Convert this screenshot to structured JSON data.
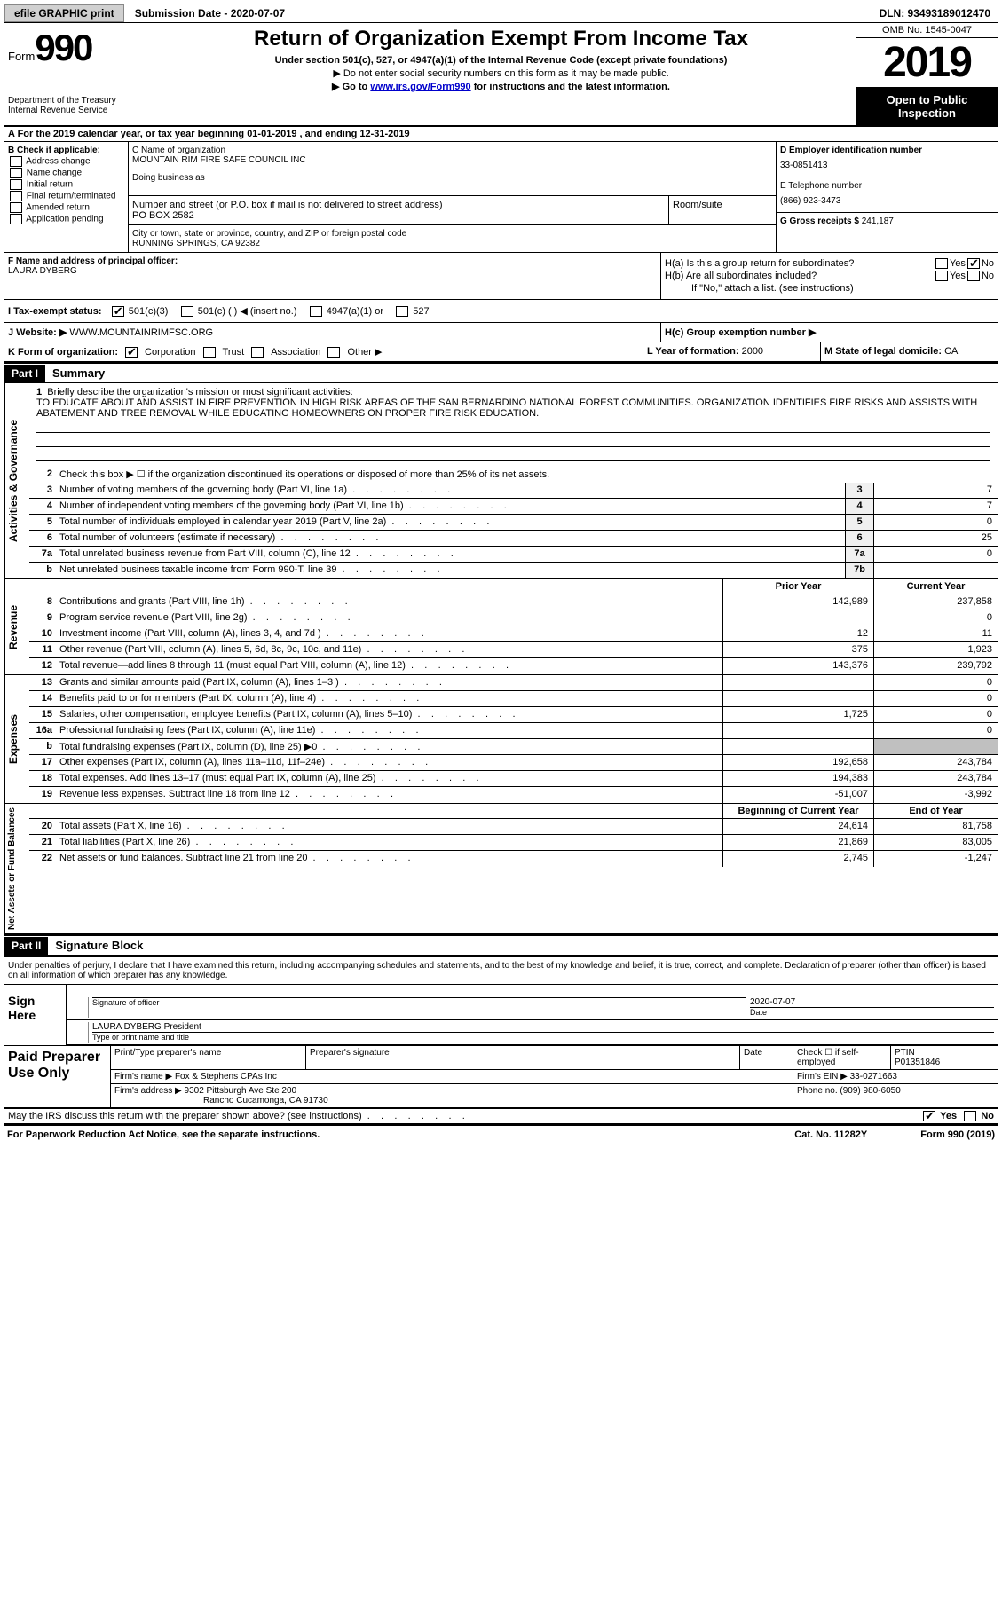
{
  "topbar": {
    "efile": "efile GRAPHIC print",
    "submission": "Submission Date - 2020-07-07",
    "dln": "DLN: 93493189012470"
  },
  "header": {
    "form_prefix": "Form",
    "form_num": "990",
    "dept1": "Department of the Treasury",
    "dept2": "Internal Revenue Service",
    "title": "Return of Organization Exempt From Income Tax",
    "sub1": "Under section 501(c), 527, or 4947(a)(1) of the Internal Revenue Code (except private foundations)",
    "sub2": "▶ Do not enter social security numbers on this form as it may be made public.",
    "sub3_pre": "▶ Go to ",
    "sub3_link": "www.irs.gov/Form990",
    "sub3_post": " for instructions and the latest information.",
    "omb": "OMB No. 1545-0047",
    "year": "2019",
    "open": "Open to Public Inspection"
  },
  "row_a": "A For the 2019 calendar year, or tax year beginning 01-01-2019    , and ending 12-31-2019",
  "box_b": {
    "hdr": "B Check if applicable:",
    "items": [
      "Address change",
      "Name change",
      "Initial return",
      "Final return/terminated",
      "Amended return",
      "Application pending"
    ]
  },
  "box_c": {
    "lbl_name": "C Name of organization",
    "name": "MOUNTAIN RIM FIRE SAFE COUNCIL INC",
    "lbl_dba": "Doing business as",
    "lbl_street": "Number and street (or P.O. box if mail is not delivered to street address)",
    "street": "PO BOX 2582",
    "lbl_room": "Room/suite",
    "lbl_city": "City or town, state or province, country, and ZIP or foreign postal code",
    "city": "RUNNING SPRINGS, CA  92382"
  },
  "box_d": {
    "lbl_ein": "D Employer identification number",
    "ein": "33-0851413",
    "lbl_tel": "E Telephone number",
    "tel": "(866) 923-3473",
    "lbl_gross": "G Gross receipts $",
    "gross": "241,187"
  },
  "box_f": {
    "lbl": "F  Name and address of principal officer:",
    "name": "LAURA DYBERG"
  },
  "box_h": {
    "ha": "H(a)  Is this a group return for subordinates?",
    "hb": "H(b)  Are all subordinates included?",
    "hb2": "If \"No,\" attach a list. (see instructions)",
    "hc": "H(c)  Group exemption number ▶",
    "yes": "Yes",
    "no": "No"
  },
  "row_i": {
    "lbl": "I    Tax-exempt status:",
    "o1": "501(c)(3)",
    "o2": "501(c) (   ) ◀ (insert no.)",
    "o3": "4947(a)(1) or",
    "o4": "527"
  },
  "row_j": {
    "lbl": "J   Website: ▶",
    "val": "WWW.MOUNTAINRIMFSC.ORG"
  },
  "row_k": {
    "lbl": "K Form of organization:",
    "o1": "Corporation",
    "o2": "Trust",
    "o3": "Association",
    "o4": "Other ▶",
    "l_lbl": "L Year of formation:",
    "l_val": "2000",
    "m_lbl": "M State of legal domicile:",
    "m_val": "CA"
  },
  "part1": {
    "hdr": "Part I",
    "title": "Summary",
    "l1a": "Briefly describe the organization's mission or most significant activities:",
    "l1b": "TO EDUCATE ABOUT AND ASSIST IN FIRE PREVENTION IN HIGH RISK AREAS OF THE SAN BERNARDINO NATIONAL FOREST COMMUNITIES. ORGANIZATION IDENTIFIES FIRE RISKS AND ASSISTS WITH ABATEMENT AND TREE REMOVAL WHILE EDUCATING HOMEOWNERS ON PROPER FIRE RISK EDUCATION.",
    "l2": "Check this box ▶ ☐  if the organization discontinued its operations or disposed of more than 25% of its net assets.",
    "lines_gov": [
      {
        "n": "3",
        "t": "Number of voting members of the governing body (Part VI, line 1a)",
        "b": "3",
        "v": "7"
      },
      {
        "n": "4",
        "t": "Number of independent voting members of the governing body (Part VI, line 1b)",
        "b": "4",
        "v": "7"
      },
      {
        "n": "5",
        "t": "Total number of individuals employed in calendar year 2019 (Part V, line 2a)",
        "b": "5",
        "v": "0"
      },
      {
        "n": "6",
        "t": "Total number of volunteers (estimate if necessary)",
        "b": "6",
        "v": "25"
      },
      {
        "n": "7a",
        "t": "Total unrelated business revenue from Part VIII, column (C), line 12",
        "b": "7a",
        "v": "0"
      },
      {
        "n": "b",
        "t": "Net unrelated business taxable income from Form 990-T, line 39",
        "b": "7b",
        "v": ""
      }
    ],
    "col_prior": "Prior Year",
    "col_current": "Current Year",
    "col_boy": "Beginning of Current Year",
    "col_eoy": "End of Year",
    "lines_rev": [
      {
        "n": "8",
        "t": "Contributions and grants (Part VIII, line 1h)",
        "p": "142,989",
        "c": "237,858"
      },
      {
        "n": "9",
        "t": "Program service revenue (Part VIII, line 2g)",
        "p": "",
        "c": "0"
      },
      {
        "n": "10",
        "t": "Investment income (Part VIII, column (A), lines 3, 4, and 7d )",
        "p": "12",
        "c": "11"
      },
      {
        "n": "11",
        "t": "Other revenue (Part VIII, column (A), lines 5, 6d, 8c, 9c, 10c, and 11e)",
        "p": "375",
        "c": "1,923"
      },
      {
        "n": "12",
        "t": "Total revenue—add lines 8 through 11 (must equal Part VIII, column (A), line 12)",
        "p": "143,376",
        "c": "239,792"
      }
    ],
    "lines_exp": [
      {
        "n": "13",
        "t": "Grants and similar amounts paid (Part IX, column (A), lines 1–3 )",
        "p": "",
        "c": "0"
      },
      {
        "n": "14",
        "t": "Benefits paid to or for members (Part IX, column (A), line 4)",
        "p": "",
        "c": "0"
      },
      {
        "n": "15",
        "t": "Salaries, other compensation, employee benefits (Part IX, column (A), lines 5–10)",
        "p": "1,725",
        "c": "0"
      },
      {
        "n": "16a",
        "t": "Professional fundraising fees (Part IX, column (A), line 11e)",
        "p": "",
        "c": "0"
      },
      {
        "n": "b",
        "t": "Total fundraising expenses (Part IX, column (D), line 25) ▶0",
        "p": "shade",
        "c": "shade"
      },
      {
        "n": "17",
        "t": "Other expenses (Part IX, column (A), lines 11a–11d, 11f–24e)",
        "p": "192,658",
        "c": "243,784"
      },
      {
        "n": "18",
        "t": "Total expenses. Add lines 13–17 (must equal Part IX, column (A), line 25)",
        "p": "194,383",
        "c": "243,784"
      },
      {
        "n": "19",
        "t": "Revenue less expenses. Subtract line 18 from line 12",
        "p": "-51,007",
        "c": "-3,992"
      }
    ],
    "lines_net": [
      {
        "n": "20",
        "t": "Total assets (Part X, line 16)",
        "p": "24,614",
        "c": "81,758"
      },
      {
        "n": "21",
        "t": "Total liabilities (Part X, line 26)",
        "p": "21,869",
        "c": "83,005"
      },
      {
        "n": "22",
        "t": "Net assets or fund balances. Subtract line 21 from line 20",
        "p": "2,745",
        "c": "-1,247"
      }
    ],
    "vtab_gov": "Activities & Governance",
    "vtab_rev": "Revenue",
    "vtab_exp": "Expenses",
    "vtab_net": "Net Assets or Fund Balances"
  },
  "part2": {
    "hdr": "Part II",
    "title": "Signature Block",
    "decl": "Under penalties of perjury, I declare that I have examined this return, including accompanying schedules and statements, and to the best of my knowledge and belief, it is true, correct, and complete. Declaration of preparer (other than officer) is based on all information of which preparer has any knowledge.",
    "sign_here": "Sign Here",
    "sig_officer": "Signature of officer",
    "sig_date": "Date",
    "sig_date_val": "2020-07-07",
    "name_title": "LAURA DYBERG  President",
    "name_lbl": "Type or print name and title",
    "paid": "Paid Preparer Use Only",
    "p_name_lbl": "Print/Type preparer's name",
    "p_sig_lbl": "Preparer's signature",
    "p_date_lbl": "Date",
    "p_check": "Check ☐ if self-employed",
    "p_ptin_lbl": "PTIN",
    "p_ptin": "P01351846",
    "firm_name_lbl": "Firm's name    ▶",
    "firm_name": "Fox & Stephens CPAs Inc",
    "firm_ein_lbl": "Firm's EIN ▶",
    "firm_ein": "33-0271663",
    "firm_addr_lbl": "Firm's address ▶",
    "firm_addr1": "9302 Pittsburgh Ave Ste 200",
    "firm_addr2": "Rancho Cucamonga, CA  91730",
    "firm_phone_lbl": "Phone no.",
    "firm_phone": "(909) 980-6050",
    "discuss": "May the IRS discuss this return with the preparer shown above? (see instructions)"
  },
  "footer": {
    "pra": "For Paperwork Reduction Act Notice, see the separate instructions.",
    "cat": "Cat. No. 11282Y",
    "form": "Form 990 (2019)"
  }
}
